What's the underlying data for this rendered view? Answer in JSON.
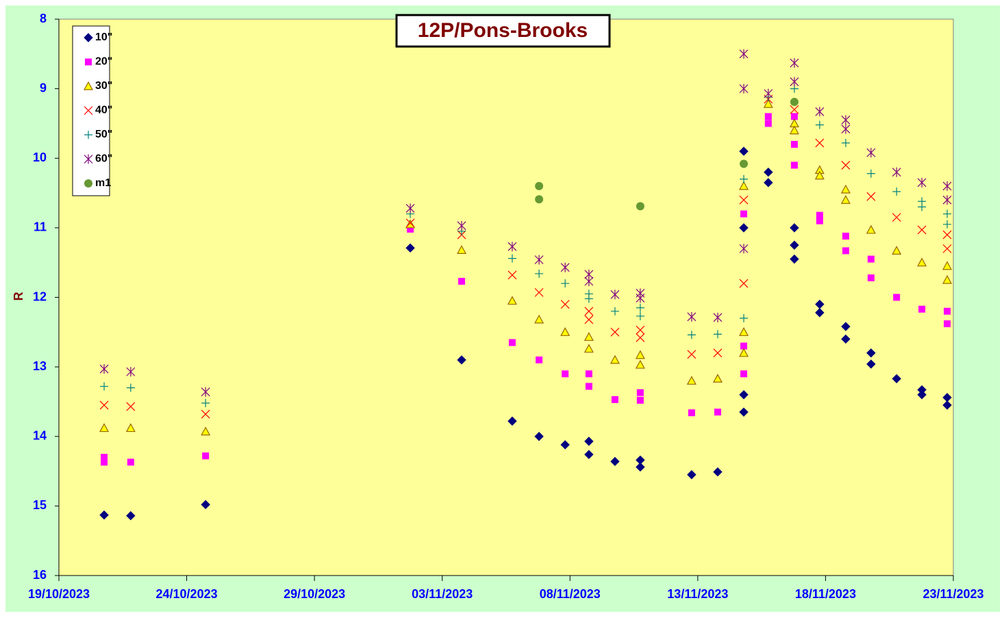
{
  "chart_data": {
    "type": "scatter",
    "title": "12P/Pons-Brooks",
    "ylabel": "R",
    "xlim": [
      0,
      35
    ],
    "xticks": [
      {
        "value": 0,
        "label": "19/10/2023"
      },
      {
        "value": 5,
        "label": "24/10/2023"
      },
      {
        "value": 10,
        "label": "29/10/2023"
      },
      {
        "value": 15,
        "label": "03/11/2023"
      },
      {
        "value": 20,
        "label": "08/11/2023"
      },
      {
        "value": 25,
        "label": "13/11/2023"
      },
      {
        "value": 30,
        "label": "18/11/2023"
      },
      {
        "value": 35,
        "label": "23/11/2023"
      }
    ],
    "ylim": [
      16,
      8
    ],
    "yticks": [
      8,
      9,
      10,
      11,
      12,
      13,
      14,
      15,
      16
    ],
    "legend": "top-left",
    "series": [
      {
        "name": "10\"",
        "color": "#000080",
        "marker": "diamond",
        "x": [
          1.77,
          2.81,
          5.74,
          13.75,
          15.76,
          17.74,
          18.79,
          19.81,
          20.74,
          20.74,
          21.76,
          22.75,
          22.75,
          24.76,
          25.78,
          26.8,
          26.8,
          26.8,
          26.8,
          27.76,
          27.76,
          28.78,
          28.78,
          28.78,
          29.77,
          29.77,
          30.79,
          30.79,
          31.78,
          31.78,
          32.78,
          33.77,
          33.77,
          34.76,
          34.76
        ],
        "values": [
          15.13,
          15.14,
          14.98,
          11.29,
          12.9,
          13.78,
          14.0,
          14.12,
          14.07,
          14.26,
          14.36,
          14.34,
          14.44,
          14.55,
          14.51,
          13.4,
          13.65,
          11.0,
          9.9,
          10.2,
          10.35,
          11.0,
          11.25,
          11.45,
          12.1,
          12.22,
          12.42,
          12.6,
          12.8,
          12.96,
          13.17,
          13.33,
          13.4,
          13.44,
          13.55
        ]
      },
      {
        "name": "20\"",
        "color": "#ff00ff",
        "marker": "square",
        "x": [
          1.77,
          1.77,
          2.81,
          5.74,
          13.75,
          15.76,
          17.74,
          18.79,
          19.81,
          20.74,
          20.74,
          21.76,
          22.75,
          22.75,
          24.76,
          25.78,
          26.8,
          26.8,
          26.8,
          27.76,
          27.76,
          28.78,
          28.78,
          28.78,
          29.77,
          29.77,
          30.79,
          30.79,
          31.78,
          31.78,
          32.78,
          33.77,
          34.76,
          34.76
        ],
        "values": [
          14.37,
          14.3,
          14.37,
          14.28,
          11.02,
          11.77,
          12.65,
          12.9,
          13.1,
          13.1,
          13.28,
          13.47,
          13.37,
          13.48,
          13.66,
          13.65,
          13.1,
          12.7,
          10.8,
          9.4,
          9.5,
          9.4,
          9.8,
          10.1,
          10.82,
          10.9,
          11.12,
          11.33,
          11.45,
          11.72,
          12.0,
          12.17,
          12.2,
          12.38
        ]
      },
      {
        "name": "30\"",
        "color": "#ffff00",
        "marker": "triangle",
        "x": [
          1.77,
          2.81,
          5.74,
          13.75,
          15.76,
          17.74,
          18.79,
          19.81,
          20.74,
          20.74,
          21.76,
          22.75,
          22.75,
          24.76,
          25.78,
          26.8,
          26.8,
          26.8,
          27.76,
          28.78,
          28.78,
          29.77,
          29.77,
          30.79,
          30.79,
          31.78,
          32.78,
          33.77,
          34.76,
          34.76
        ],
        "values": [
          13.88,
          13.88,
          13.93,
          10.95,
          11.32,
          12.05,
          12.32,
          12.5,
          12.57,
          12.74,
          12.9,
          12.83,
          12.97,
          13.2,
          13.17,
          12.8,
          12.5,
          10.4,
          9.22,
          9.5,
          9.6,
          10.17,
          10.25,
          10.45,
          10.6,
          11.03,
          11.33,
          11.5,
          11.55,
          11.75
        ]
      },
      {
        "name": "40\"",
        "color": "#ff0000",
        "marker": "cross",
        "x": [
          1.77,
          2.81,
          5.74,
          13.75,
          15.76,
          17.74,
          18.79,
          19.81,
          20.74,
          20.74,
          21.76,
          22.75,
          22.75,
          24.76,
          25.78,
          26.8,
          26.8,
          27.76,
          28.78,
          29.77,
          30.79,
          31.78,
          32.78,
          33.77,
          34.76,
          34.76
        ],
        "values": [
          13.55,
          13.57,
          13.68,
          10.93,
          11.1,
          11.68,
          11.93,
          12.1,
          12.2,
          12.32,
          12.5,
          12.47,
          12.58,
          12.82,
          12.8,
          11.8,
          10.6,
          9.15,
          9.3,
          9.78,
          10.1,
          10.55,
          10.85,
          11.03,
          11.1,
          11.3
        ]
      },
      {
        "name": "50\"",
        "color": "#008080",
        "marker": "plus",
        "x": [
          1.77,
          2.81,
          5.74,
          13.75,
          15.76,
          17.74,
          18.79,
          19.81,
          20.74,
          20.74,
          21.76,
          22.75,
          22.75,
          24.76,
          25.78,
          26.8,
          26.8,
          27.76,
          28.78,
          29.77,
          30.79,
          31.78,
          32.78,
          33.77,
          33.77,
          34.76,
          34.76
        ],
        "values": [
          13.28,
          13.3,
          13.52,
          10.8,
          11.05,
          11.44,
          11.66,
          11.8,
          11.95,
          12.02,
          12.2,
          12.15,
          12.27,
          12.54,
          12.53,
          12.3,
          10.3,
          9.12,
          9.0,
          9.52,
          9.78,
          10.22,
          10.48,
          10.62,
          10.7,
          10.8,
          10.95
        ]
      },
      {
        "name": "60\"",
        "color": "#800080",
        "marker": "star",
        "x": [
          1.77,
          2.81,
          5.74,
          13.75,
          15.76,
          17.74,
          18.79,
          19.81,
          20.74,
          20.74,
          21.76,
          22.75,
          22.75,
          24.76,
          25.78,
          26.8,
          26.8,
          26.8,
          27.76,
          28.78,
          28.78,
          29.77,
          30.79,
          30.79,
          31.78,
          32.78,
          33.77,
          34.76,
          34.76
        ],
        "values": [
          13.03,
          13.07,
          13.36,
          10.72,
          10.97,
          11.27,
          11.46,
          11.57,
          11.67,
          11.77,
          11.96,
          11.94,
          12.01,
          12.28,
          12.29,
          11.3,
          8.5,
          9.0,
          9.07,
          8.63,
          8.9,
          9.33,
          9.45,
          9.58,
          9.92,
          10.2,
          10.35,
          10.4,
          10.6
        ]
      },
      {
        "name": "m1",
        "color": "#669933",
        "marker": "circle",
        "x": [
          18.79,
          18.79,
          22.75,
          26.8,
          28.78
        ],
        "values": [
          10.4,
          10.59,
          10.69,
          10.08,
          9.19
        ]
      }
    ]
  }
}
